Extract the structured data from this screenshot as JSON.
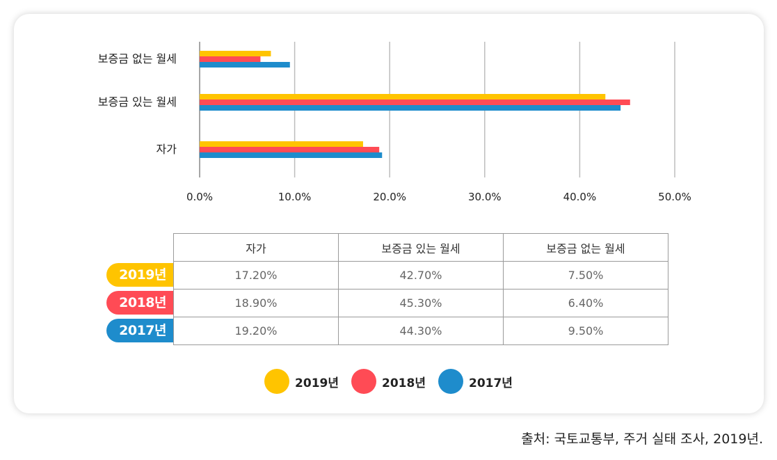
{
  "chart_data": {
    "type": "bar",
    "orientation": "horizontal",
    "categories": [
      "보증금 없는 월세",
      "보증금 있는 월세",
      "자가"
    ],
    "series": [
      {
        "name": "2019년",
        "color": "#ffc400",
        "values": [
          7.5,
          42.7,
          17.2
        ]
      },
      {
        "name": "2018년",
        "color": "#ff4b55",
        "values": [
          6.4,
          45.3,
          18.9
        ]
      },
      {
        "name": "2017년",
        "color": "#1e8ccc",
        "values": [
          9.5,
          44.3,
          19.2
        ]
      }
    ],
    "xlim": [
      0,
      50
    ],
    "xticks": [
      "0.0%",
      "10.0%",
      "20.0%",
      "30.0%",
      "40.0%",
      "50.0%"
    ],
    "grid": true,
    "legend_placement": "bottom-center"
  },
  "table": {
    "headers": [
      "자가",
      "보증금 있는 월세",
      "보증금 없는 월세"
    ],
    "rows": [
      {
        "label": "2019년",
        "color": "#ffc400",
        "cells": [
          "17.20%",
          "42.70%",
          "7.50%"
        ]
      },
      {
        "label": "2018년",
        "color": "#ff4b55",
        "cells": [
          "18.90%",
          "45.30%",
          "6.40%"
        ]
      },
      {
        "label": "2017년",
        "color": "#1e8ccc",
        "cells": [
          "19.20%",
          "44.30%",
          "9.50%"
        ]
      }
    ]
  },
  "legend": [
    {
      "label": "2019년",
      "color": "#ffc400"
    },
    {
      "label": "2018년",
      "color": "#ff4b55"
    },
    {
      "label": "2017년",
      "color": "#1e8ccc"
    }
  ],
  "source": "출처: 국토교통부, 주거 실태 조사, 2019년."
}
